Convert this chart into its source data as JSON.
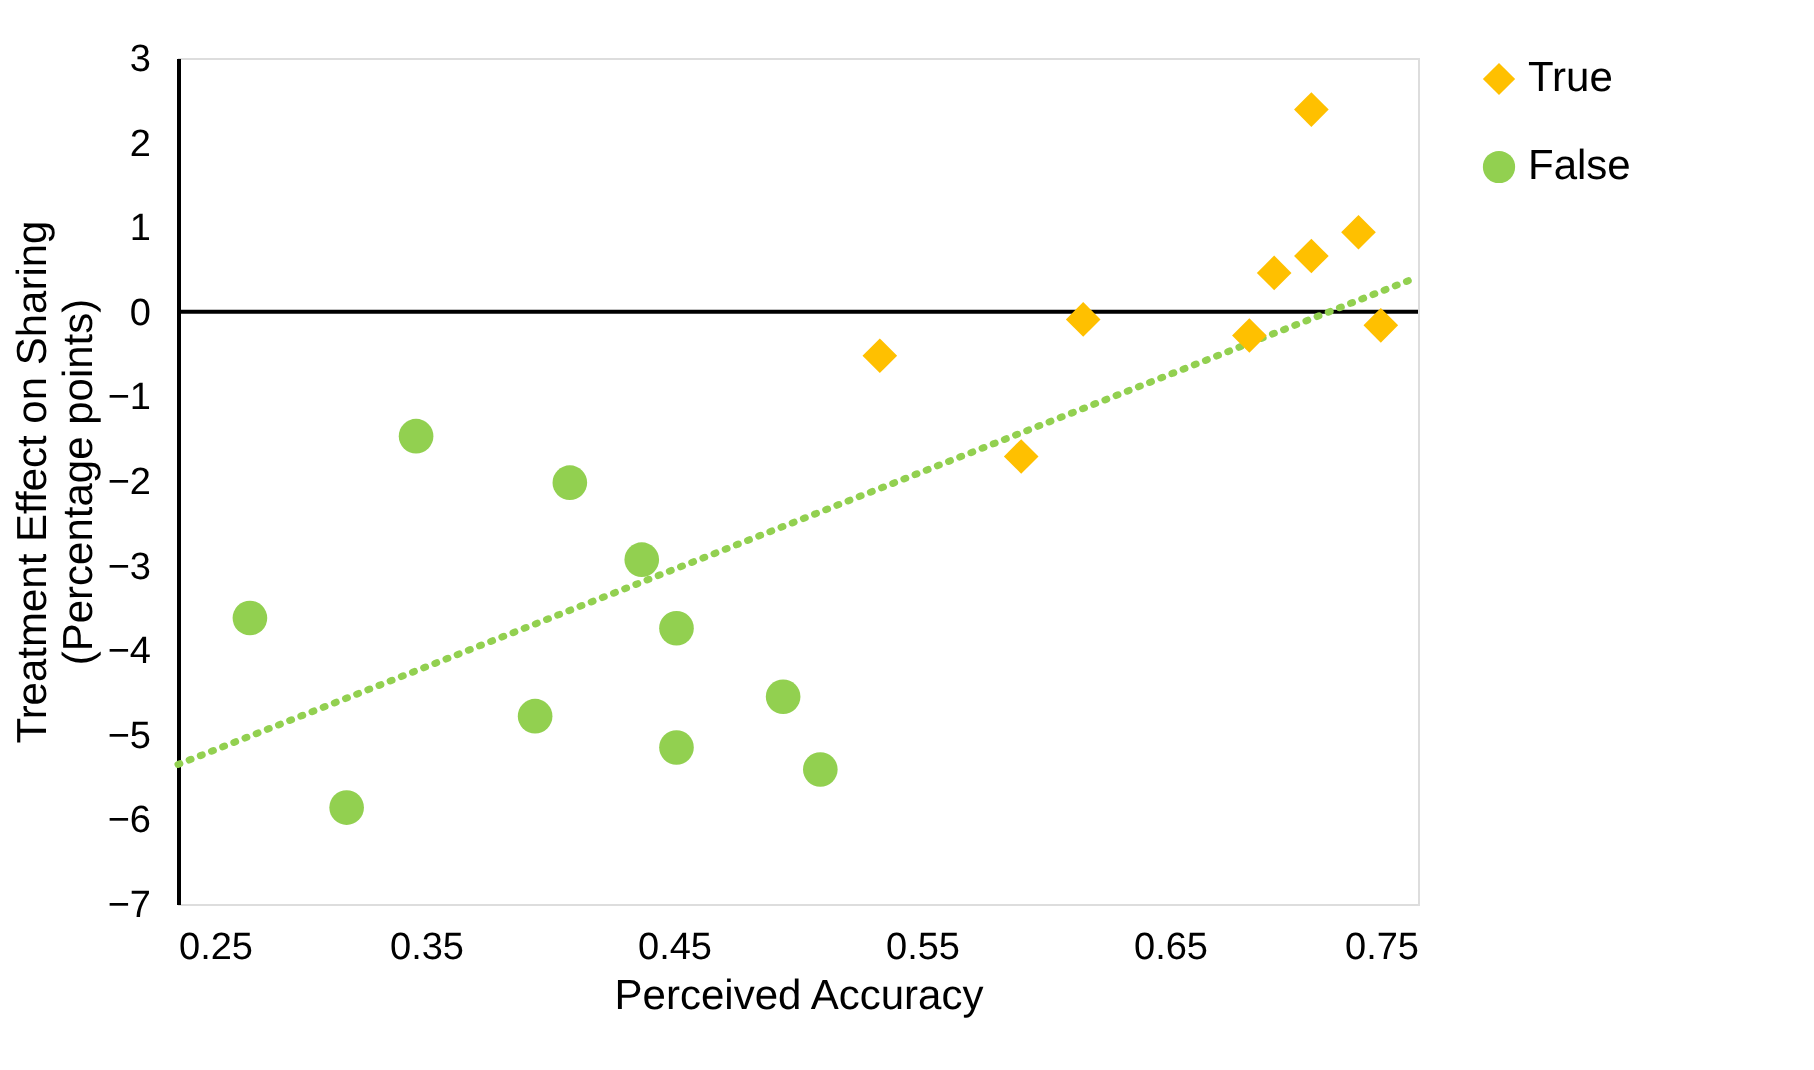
{
  "chart_data": {
    "type": "scatter",
    "xlabel": "Perceived Accuracy",
    "ylabel": "Treatment Effect on Sharing\n(Percentage points)",
    "xlim": [
      0.25,
      0.75
    ],
    "xticks": [
      0.25,
      0.35,
      0.45,
      0.55,
      0.65,
      0.75
    ],
    "ylim": [
      -7,
      3
    ],
    "yticks": [
      -7,
      -6,
      -5,
      -4,
      -3,
      -2,
      -1,
      0,
      1,
      2,
      3
    ],
    "grid": false,
    "legend": "right",
    "ref_lines": [
      {
        "axis": "y",
        "value": 0,
        "color": "#000000"
      }
    ],
    "series": [
      {
        "name": "True",
        "color": "#ffc000",
        "marker": "diamond",
        "x": [
          0.533,
          0.59,
          0.615,
          0.682,
          0.692,
          0.707,
          0.707,
          0.726,
          0.735
        ],
        "values": [
          -0.52,
          -1.71,
          -0.09,
          -0.28,
          0.46,
          2.39,
          0.66,
          0.94,
          -0.16
        ]
      },
      {
        "name": "False",
        "color": "#92d050",
        "marker": "circle",
        "x": [
          0.279,
          0.318,
          0.346,
          0.394,
          0.408,
          0.437,
          0.451,
          0.451,
          0.494,
          0.509
        ],
        "values": [
          -3.62,
          -5.86,
          -1.47,
          -4.78,
          -2.02,
          -2.93,
          -3.74,
          -5.15,
          -4.55,
          -5.41
        ]
      },
      {
        "type": "line",
        "color": "#92d050",
        "line_style": "dotted",
        "x": [
          0.25,
          0.748
        ],
        "values": [
          -5.35,
          0.39
        ]
      }
    ]
  }
}
